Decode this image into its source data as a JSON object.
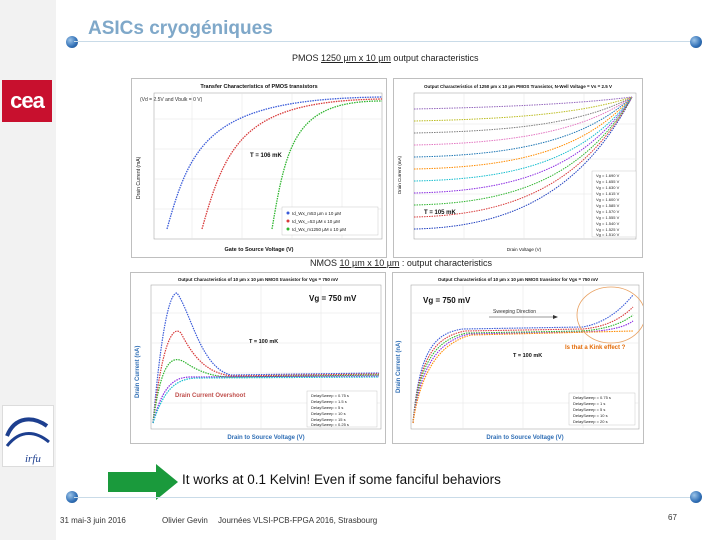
{
  "slide": {
    "title": "ASICs cryogéniques",
    "caption": "It works at 0.1 Kelvin! Even if some fanciful behaviors",
    "footer_date": "31 mai-3 juin 2016",
    "footer_author": "Olivier Gevin",
    "footer_event": "Journées VLSI-PCB-FPGA 2016, Strasbourg",
    "page_number": "67"
  },
  "logos": {
    "cea": "cea",
    "irfu": "irfu"
  },
  "pmos": {
    "heading_pre": "PMOS ",
    "heading_u": "1250 µm x 10 µm",
    "heading_post": " output characteristics",
    "transfer": {
      "title": "Transfer Characteristics of PMOS transistors",
      "note": "(Vd = 2.5V and Vbulk = 0 V)",
      "temp": "T = 106 mK",
      "ylabel": "Drain Current (mA)",
      "xlabel": "Gate to Source Voltage (V)",
      "legend": [
        "Id_Wx_m53 µm x 10 µM",
        "Id_Wx_=53 µM x 10 µM",
        "Id_Wx_m1250 µM x 10 µM"
      ]
    },
    "output": {
      "title": "Output Characteristics of 1250 µm x 10 µm PMOS Transistor, N-Well Voltage = Vs = 2.5 V",
      "temp": "T = 105 mK",
      "ylabel": "Drain Current (mA)",
      "xlabel": "Drain Voltage (V)",
      "legend": [
        "Vg = 1.690 V",
        "Vg = 1.655 V",
        "Vg = 1.630 V",
        "Vg = 1.615 V",
        "Vg = 1.600 V",
        "Vg = 1.585 V",
        "Vg = 1.570 V",
        "Vg = 1.555 V",
        "Vg = 1.540 V",
        "Vg = 1.525 V",
        "Vg = 1.510 V"
      ]
    }
  },
  "nmos": {
    "heading_pre": "NMOS ",
    "heading_u": "10 µm x 10 µm",
    "heading_post": " : output characteristics",
    "left": {
      "title": "Output Characteristics of 10 µm x 10 µm NMOS transistor for Vgs = 750 mV",
      "vg": "Vg = 750 mV",
      "temp": "T = 100 mK",
      "ylabel": "Drain Current (nA)",
      "xlabel": "Drain to Source Voltage (V)",
      "annotation": "Drain Current Overshoot",
      "legend": [
        "DelaySweep = 0.75 s",
        "DelaySweep = 1.5 s",
        "DelaySweep = 5 s",
        "DelaySweep = 10 s",
        "DelaySweep = 15 s",
        "DelaySweep = 0.25 s"
      ]
    },
    "right": {
      "title": "Output Characteristics of 10 µm x 10 µm NMOS transistor for Vgs = 750 mV",
      "vg": "Vg = 750 mV",
      "temp": "T = 100 mK",
      "ylabel": "Drain Current (nA)",
      "xlabel": "Drain to Source Voltage (V)",
      "annotation": "Sweeping Direction",
      "kink": "Is that a Kink effect ?",
      "legend": [
        "DelaySweep = 0.75 s",
        "DelaySweep = 1 s",
        "DelaySweep = 5 s",
        "DelaySweep = 10 s",
        "DelaySweep = 20 s"
      ]
    }
  },
  "colors": {
    "title": "#7fa8c9",
    "accent": "#2f6eb5",
    "arrow": "#1a9a3c",
    "kink": "#e36c09"
  }
}
